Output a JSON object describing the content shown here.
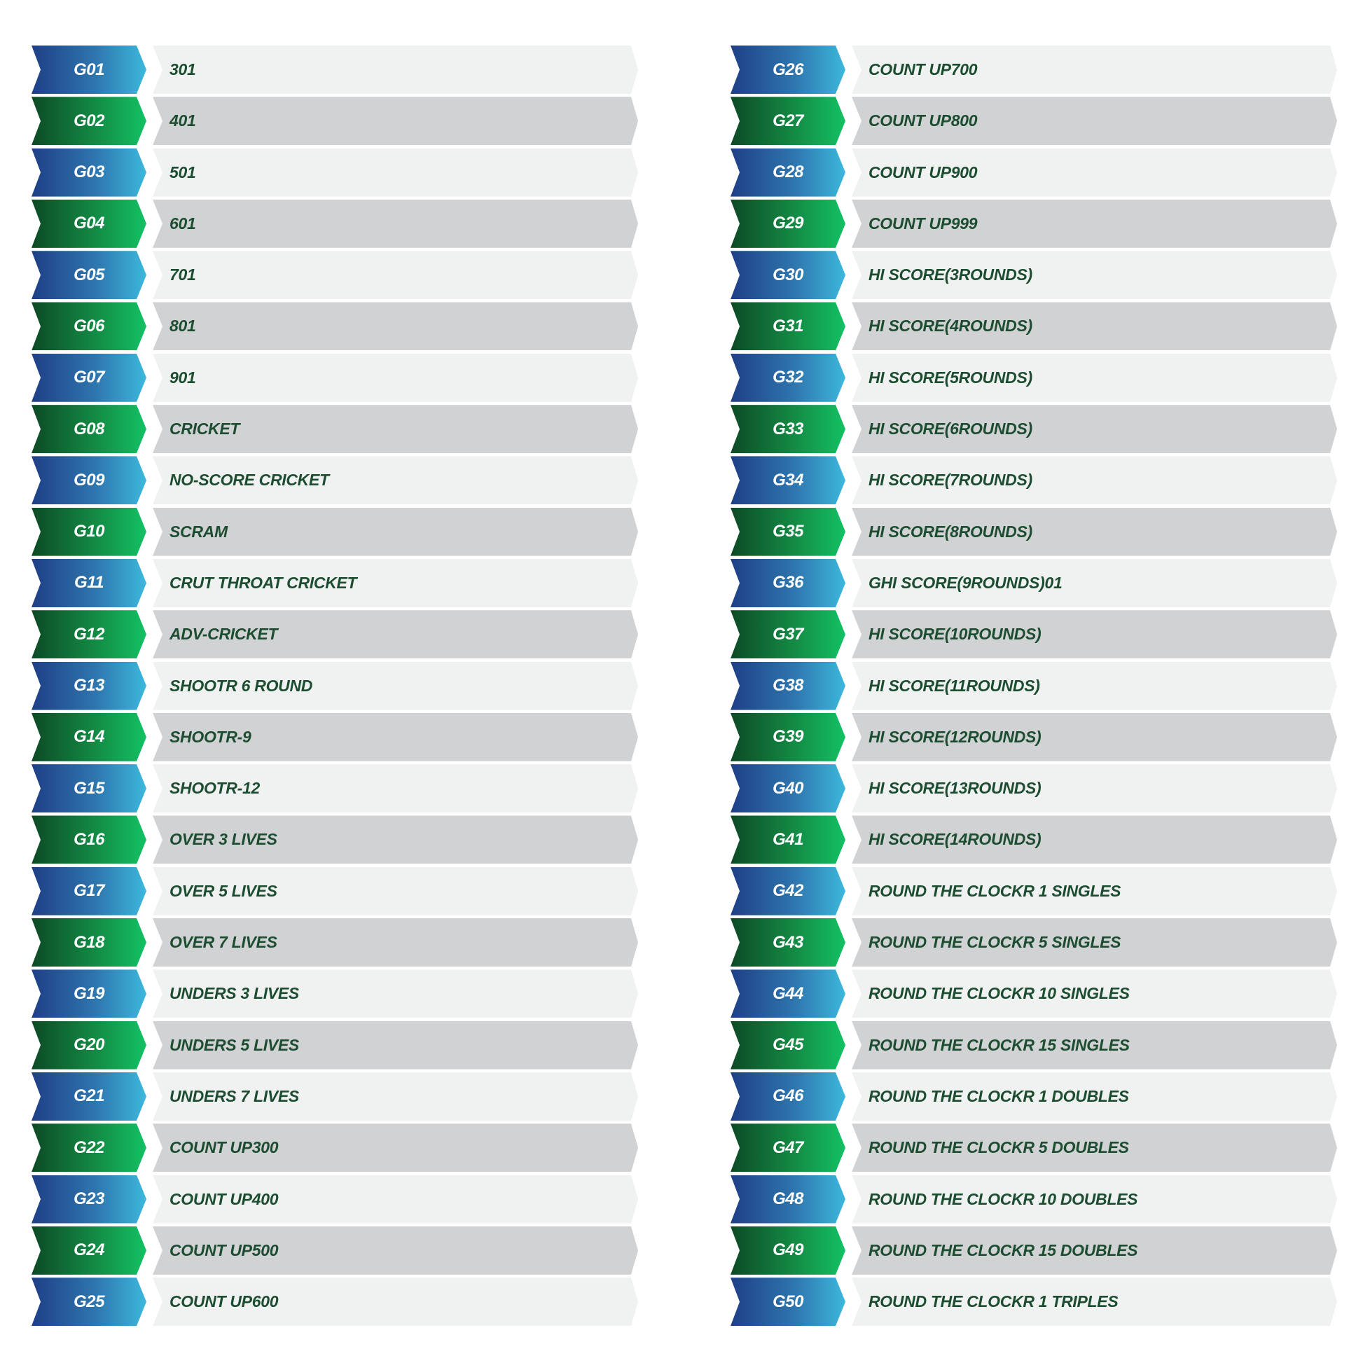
{
  "colors": {
    "blue_start": "#1f3f86",
    "blue_end": "#3db8dd",
    "green_start": "#0d4a25",
    "green_end": "#13c164",
    "text": "#1d4d31",
    "row_light": "#f0f1f1",
    "row_dark": "#d1d2d4"
  },
  "games": [
    {
      "code": "G01",
      "name": "301"
    },
    {
      "code": "G02",
      "name": "401"
    },
    {
      "code": "G03",
      "name": "501"
    },
    {
      "code": "G04",
      "name": "601"
    },
    {
      "code": "G05",
      "name": "701"
    },
    {
      "code": "G06",
      "name": "801"
    },
    {
      "code": "G07",
      "name": "901"
    },
    {
      "code": "G08",
      "name": "CRICKET"
    },
    {
      "code": "G09",
      "name": "NO-SCORE CRICKET"
    },
    {
      "code": "G10",
      "name": "SCRAM"
    },
    {
      "code": "G11",
      "name": "CRUT THROAT CRICKET"
    },
    {
      "code": "G12",
      "name": "ADV-CRICKET"
    },
    {
      "code": "G13",
      "name": "SHOOTR 6 ROUND"
    },
    {
      "code": "G14",
      "name": "SHOOTR-9"
    },
    {
      "code": "G15",
      "name": "SHOOTR-12"
    },
    {
      "code": "G16",
      "name": "OVER 3 LIVES"
    },
    {
      "code": "G17",
      "name": "OVER 5 LIVES"
    },
    {
      "code": "G18",
      "name": "OVER 7 LIVES"
    },
    {
      "code": "G19",
      "name": "UNDERS 3 LIVES"
    },
    {
      "code": "G20",
      "name": "UNDERS 5 LIVES"
    },
    {
      "code": "G21",
      "name": "UNDERS 7 LIVES"
    },
    {
      "code": "G22",
      "name": "COUNT UP300"
    },
    {
      "code": "G23",
      "name": "COUNT UP400"
    },
    {
      "code": "G24",
      "name": "COUNT UP500"
    },
    {
      "code": "G25",
      "name": "COUNT UP600"
    },
    {
      "code": "G26",
      "name": "COUNT UP700"
    },
    {
      "code": "G27",
      "name": "COUNT UP800"
    },
    {
      "code": "G28",
      "name": "COUNT UP900"
    },
    {
      "code": "G29",
      "name": "COUNT UP999"
    },
    {
      "code": "G30",
      "name": "HI SCORE(3ROUNDS)"
    },
    {
      "code": "G31",
      "name": "HI SCORE(4ROUNDS)"
    },
    {
      "code": "G32",
      "name": "HI SCORE(5ROUNDS)"
    },
    {
      "code": "G33",
      "name": "HI SCORE(6ROUNDS)"
    },
    {
      "code": "G34",
      "name": "HI SCORE(7ROUNDS)"
    },
    {
      "code": "G35",
      "name": "HI SCORE(8ROUNDS)"
    },
    {
      "code": "G36",
      "name": "GHI SCORE(9ROUNDS)01"
    },
    {
      "code": "G37",
      "name": "HI SCORE(10ROUNDS)"
    },
    {
      "code": "G38",
      "name": "HI SCORE(11ROUNDS)"
    },
    {
      "code": "G39",
      "name": "HI SCORE(12ROUNDS)"
    },
    {
      "code": "G40",
      "name": "HI SCORE(13ROUNDS)"
    },
    {
      "code": "G41",
      "name": "HI SCORE(14ROUNDS)"
    },
    {
      "code": "G42",
      "name": "ROUND THE CLOCKR 1 SINGLES"
    },
    {
      "code": "G43",
      "name": "ROUND THE CLOCKR 5 SINGLES"
    },
    {
      "code": "G44",
      "name": "ROUND THE CLOCKR 10 SINGLES"
    },
    {
      "code": "G45",
      "name": "ROUND THE CLOCKR 15 SINGLES"
    },
    {
      "code": "G46",
      "name": "ROUND THE CLOCKR 1 DOUBLES"
    },
    {
      "code": "G47",
      "name": "ROUND THE CLOCKR 5 DOUBLES"
    },
    {
      "code": "G48",
      "name": "ROUND THE CLOCKR 10 DOUBLES"
    },
    {
      "code": "G49",
      "name": "ROUND THE CLOCKR 15 DOUBLES"
    },
    {
      "code": "G50",
      "name": "ROUND THE CLOCKR 1 TRIPLES"
    }
  ]
}
